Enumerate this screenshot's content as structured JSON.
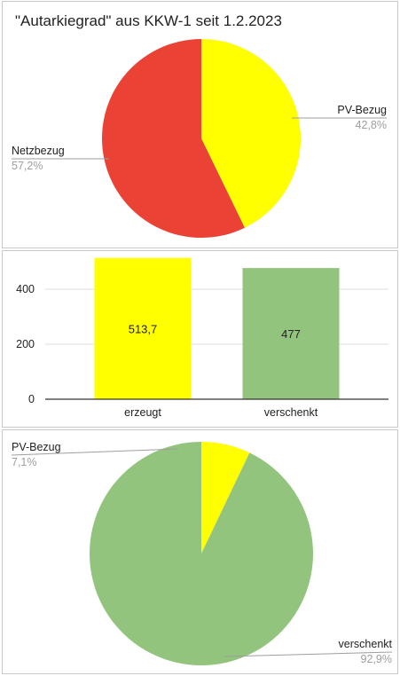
{
  "chart_data": [
    {
      "type": "pie",
      "title": "\"Autarkiegrad\" aus KKW-1 seit 1.2.2023",
      "slices": [
        {
          "label": "PV-Bezug",
          "value": 42.8,
          "value_label": "42,8%",
          "color": "#ffff00"
        },
        {
          "label": "Netzbezug",
          "value": 57.2,
          "value_label": "57,2%",
          "color": "#ea4335"
        }
      ]
    },
    {
      "type": "bar",
      "categories": [
        "erzeugt",
        "verschenkt"
      ],
      "values": [
        513.7,
        477
      ],
      "value_labels": [
        "513,7",
        "477"
      ],
      "colors": [
        "#ffff00",
        "#93c47d"
      ],
      "ylim": [
        0,
        520
      ],
      "yticks": [
        0,
        200,
        400
      ],
      "grid": true
    },
    {
      "type": "pie",
      "slices": [
        {
          "label": "PV-Bezug",
          "value": 7.1,
          "value_label": "7,1%",
          "color": "#ffff00"
        },
        {
          "label": "verschenkt",
          "value": 92.9,
          "value_label": "92,9%",
          "color": "#93c47d"
        }
      ]
    }
  ]
}
